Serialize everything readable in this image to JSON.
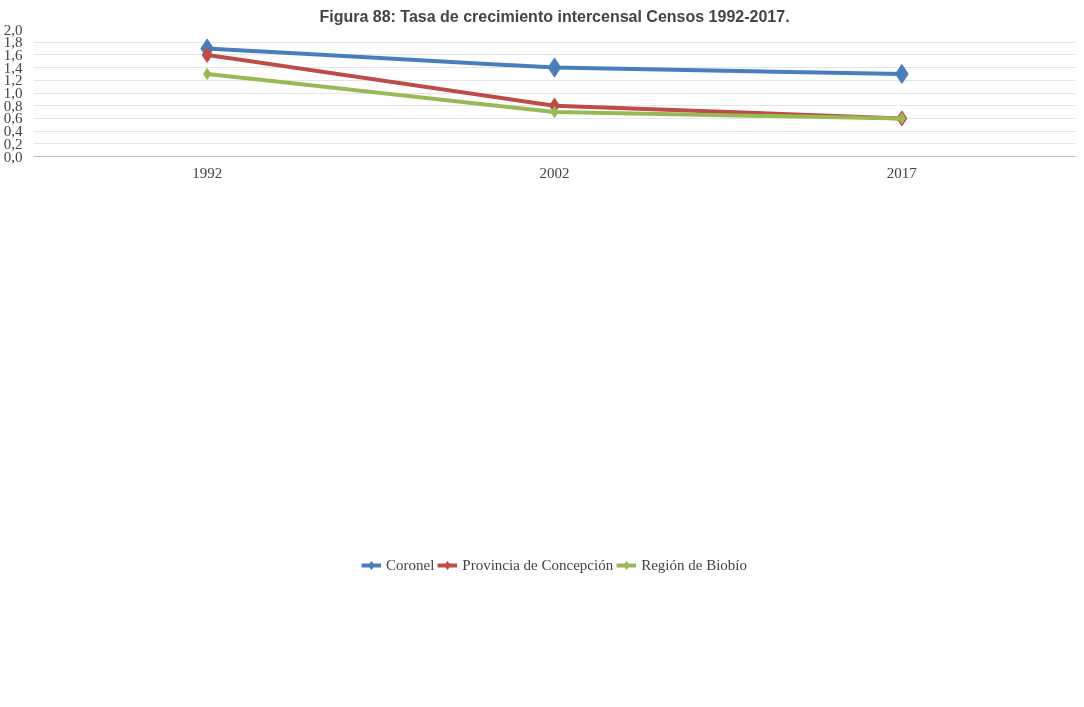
{
  "chart_data": {
    "type": "line",
    "title": "Figura 88: Tasa de crecimiento intercensal Censos 1992-2017.",
    "categories": [
      "1992",
      "2002",
      "2017"
    ],
    "series": [
      {
        "name": "Coronel",
        "color": "#4a7ebb",
        "values": [
          1.7,
          1.4,
          1.3
        ]
      },
      {
        "name": "Provincia de Concepción",
        "color": "#be4b48",
        "values": [
          1.6,
          0.8,
          0.6
        ]
      },
      {
        "name": "Región de Biobío",
        "color": "#98b954",
        "values": [
          1.3,
          0.7,
          0.6
        ]
      }
    ],
    "ylim": [
      0,
      2
    ],
    "yticks": [
      {
        "value": 0,
        "label": "0,0"
      },
      {
        "value": 0.2,
        "label": "0,2"
      },
      {
        "value": 0.4,
        "label": "0,4"
      },
      {
        "value": 0.6,
        "label": "0,6"
      },
      {
        "value": 0.8,
        "label": "0,8"
      },
      {
        "value": 1.0,
        "label": "1,0"
      },
      {
        "value": 1.2,
        "label": "1,2"
      },
      {
        "value": 1.4,
        "label": "1,4"
      },
      {
        "value": 1.6,
        "label": "1,6"
      },
      {
        "value": 1.8,
        "label": "1,8"
      },
      {
        "value": 2.0,
        "label": "2,0"
      }
    ],
    "grid": "y",
    "legend": "bottom",
    "marker": "diamond",
    "line_style": "solid"
  }
}
